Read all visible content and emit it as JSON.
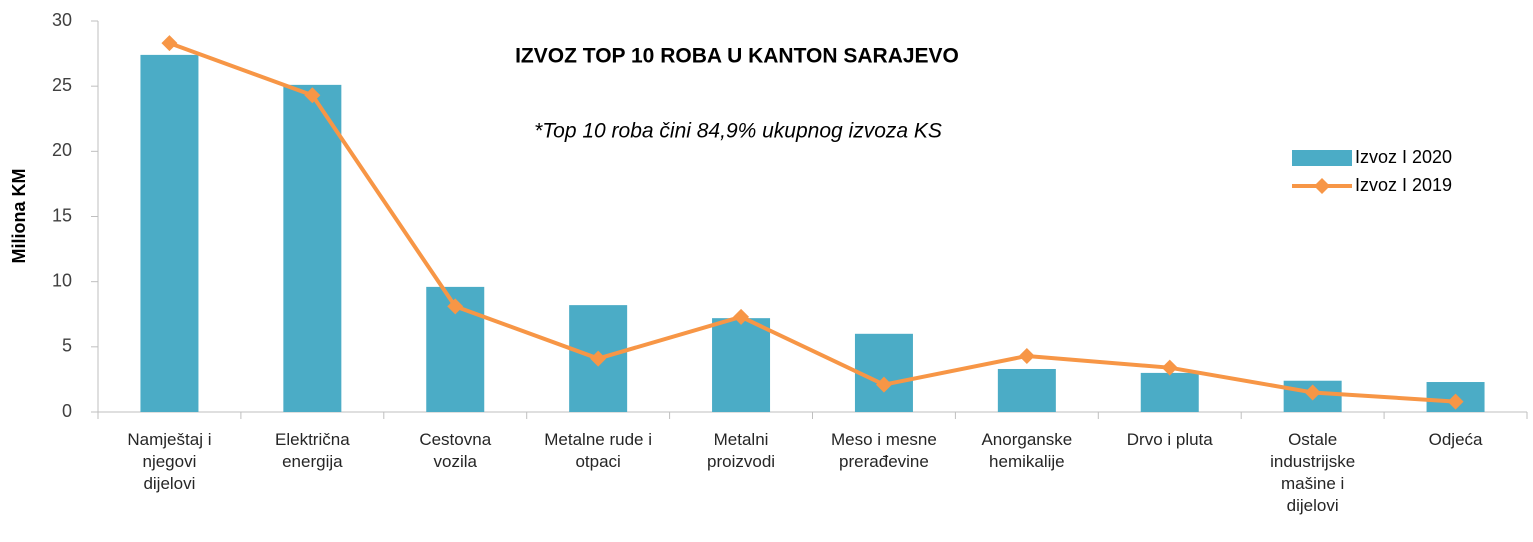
{
  "chart_data": {
    "type": "bar_line",
    "title": "IZVOZ TOP 10 ROBA U KANTON SARAJEVO",
    "subtitle": "*Top 10 roba čini 84,9% ukupnog izvoza KS",
    "y_label": "Miliona KM",
    "categories": [
      "Namještaj i\nnjegovi\ndijelovi",
      "Električna\nenergija",
      "Cestovna\nvozila",
      "Metalne rude i\notpaci",
      "Metalni\nproizvodi",
      "Meso i mesne\nprerađevine",
      "Anorganske\nhemikalije",
      "Drvo i pluta",
      "Ostale\nindustrijske\nmašine i\ndijelovi",
      "Odjeća"
    ],
    "series": [
      {
        "name": "Izvoz I 2020",
        "kind": "bar",
        "color": "#4bacc6",
        "values": [
          27.4,
          25.1,
          9.6,
          8.2,
          7.2,
          6.0,
          3.3,
          3.0,
          2.4,
          2.3
        ]
      },
      {
        "name": "Izvoz I 2019",
        "kind": "line",
        "color": "#f79646",
        "values": [
          28.3,
          24.3,
          8.1,
          4.1,
          7.3,
          2.1,
          4.3,
          3.4,
          1.5,
          0.8
        ]
      }
    ],
    "ylim": [
      0,
      30
    ],
    "yticks": [
      0,
      5,
      10,
      15,
      20,
      25,
      30
    ],
    "grid": false
  }
}
